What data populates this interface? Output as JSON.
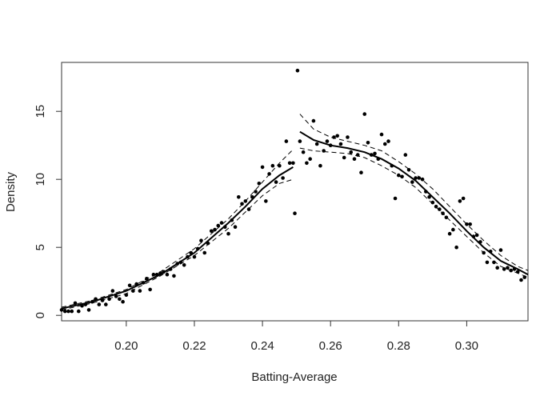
{
  "chart_data": {
    "type": "scatter",
    "title": "",
    "xlabel": "Batting-Average",
    "ylabel": "Density",
    "xlim": [
      0.181,
      0.318
    ],
    "ylim": [
      -0.4,
      18.6
    ],
    "xticks": [
      0.2,
      0.22,
      0.24,
      0.26,
      0.28,
      0.3
    ],
    "xtick_labels": [
      "0.20",
      "0.22",
      "0.24",
      "0.26",
      "0.28",
      "0.30"
    ],
    "yticks": [
      0,
      5,
      10,
      15
    ],
    "ytick_labels": [
      "0",
      "5",
      "10",
      "15"
    ],
    "grid": false,
    "legend": "none",
    "discontinuity_at": 0.25,
    "points": [
      [
        0.181,
        0.4
      ],
      [
        0.182,
        0.3
      ],
      [
        0.183,
        0.3
      ],
      [
        0.184,
        0.3
      ],
      [
        0.185,
        0.9
      ],
      [
        0.186,
        0.3
      ],
      [
        0.187,
        0.7
      ],
      [
        0.188,
        0.8
      ],
      [
        0.189,
        0.4
      ],
      [
        0.19,
        1.0
      ],
      [
        0.191,
        1.2
      ],
      [
        0.192,
        0.8
      ],
      [
        0.193,
        1.1
      ],
      [
        0.194,
        0.8
      ],
      [
        0.195,
        1.2
      ],
      [
        0.196,
        1.8
      ],
      [
        0.197,
        1.4
      ],
      [
        0.198,
        1.2
      ],
      [
        0.199,
        1.0
      ],
      [
        0.2,
        1.5
      ],
      [
        0.201,
        2.2
      ],
      [
        0.202,
        1.8
      ],
      [
        0.203,
        2.3
      ],
      [
        0.204,
        1.8
      ],
      [
        0.205,
        2.4
      ],
      [
        0.206,
        2.7
      ],
      [
        0.207,
        1.9
      ],
      [
        0.208,
        3.0
      ],
      [
        0.209,
        3.0
      ],
      [
        0.21,
        3.1
      ],
      [
        0.211,
        3.2
      ],
      [
        0.212,
        3.0
      ],
      [
        0.213,
        3.4
      ],
      [
        0.214,
        2.9
      ],
      [
        0.215,
        3.8
      ],
      [
        0.216,
        3.9
      ],
      [
        0.217,
        3.7
      ],
      [
        0.218,
        4.3
      ],
      [
        0.219,
        4.6
      ],
      [
        0.22,
        4.3
      ],
      [
        0.221,
        4.9
      ],
      [
        0.222,
        5.5
      ],
      [
        0.223,
        4.6
      ],
      [
        0.224,
        5.3
      ],
      [
        0.225,
        6.2
      ],
      [
        0.226,
        6.3
      ],
      [
        0.227,
        6.6
      ],
      [
        0.228,
        6.8
      ],
      [
        0.229,
        6.5
      ],
      [
        0.23,
        6.0
      ],
      [
        0.231,
        7.0
      ],
      [
        0.232,
        6.5
      ],
      [
        0.233,
        8.7
      ],
      [
        0.234,
        8.2
      ],
      [
        0.235,
        8.4
      ],
      [
        0.236,
        7.8
      ],
      [
        0.237,
        8.7
      ],
      [
        0.238,
        9.1
      ],
      [
        0.239,
        9.7
      ],
      [
        0.24,
        10.9
      ],
      [
        0.241,
        8.4
      ],
      [
        0.242,
        10.4
      ],
      [
        0.243,
        11.0
      ],
      [
        0.244,
        9.8
      ],
      [
        0.245,
        11.0
      ],
      [
        0.246,
        10.1
      ],
      [
        0.247,
        12.8
      ],
      [
        0.248,
        11.2
      ],
      [
        0.249,
        11.2
      ],
      [
        0.2495,
        7.5
      ],
      [
        0.2503,
        18.0
      ],
      [
        0.251,
        12.8
      ],
      [
        0.252,
        12.0
      ],
      [
        0.253,
        11.2
      ],
      [
        0.254,
        11.5
      ],
      [
        0.255,
        14.3
      ],
      [
        0.256,
        12.6
      ],
      [
        0.257,
        11.0
      ],
      [
        0.258,
        12.1
      ],
      [
        0.259,
        12.8
      ],
      [
        0.26,
        12.5
      ],
      [
        0.261,
        13.1
      ],
      [
        0.262,
        13.2
      ],
      [
        0.263,
        12.6
      ],
      [
        0.264,
        11.6
      ],
      [
        0.265,
        13.1
      ],
      [
        0.266,
        12.0
      ],
      [
        0.267,
        11.5
      ],
      [
        0.268,
        11.8
      ],
      [
        0.269,
        10.5
      ],
      [
        0.27,
        14.8
      ],
      [
        0.271,
        12.7
      ],
      [
        0.272,
        11.8
      ],
      [
        0.273,
        11.9
      ],
      [
        0.274,
        11.5
      ],
      [
        0.275,
        13.3
      ],
      [
        0.276,
        12.6
      ],
      [
        0.277,
        12.8
      ],
      [
        0.278,
        11.0
      ],
      [
        0.279,
        8.6
      ],
      [
        0.28,
        10.3
      ],
      [
        0.281,
        10.2
      ],
      [
        0.282,
        11.8
      ],
      [
        0.283,
        10.7
      ],
      [
        0.284,
        9.8
      ],
      [
        0.285,
        10.1
      ],
      [
        0.286,
        10.1
      ],
      [
        0.287,
        10.0
      ],
      [
        0.288,
        9.1
      ],
      [
        0.289,
        8.7
      ],
      [
        0.29,
        8.3
      ],
      [
        0.291,
        8.0
      ],
      [
        0.292,
        7.8
      ],
      [
        0.293,
        7.5
      ],
      [
        0.294,
        7.2
      ],
      [
        0.295,
        6.0
      ],
      [
        0.296,
        6.3
      ],
      [
        0.297,
        5.0
      ],
      [
        0.298,
        8.4
      ],
      [
        0.299,
        8.6
      ],
      [
        0.3,
        6.7
      ],
      [
        0.301,
        6.7
      ],
      [
        0.302,
        5.8
      ],
      [
        0.303,
        5.9
      ],
      [
        0.304,
        5.4
      ],
      [
        0.305,
        4.6
      ],
      [
        0.306,
        3.9
      ],
      [
        0.307,
        4.7
      ],
      [
        0.308,
        3.9
      ],
      [
        0.309,
        3.5
      ],
      [
        0.31,
        4.8
      ],
      [
        0.311,
        3.4
      ],
      [
        0.312,
        3.5
      ],
      [
        0.313,
        3.3
      ],
      [
        0.314,
        3.4
      ],
      [
        0.315,
        3.2
      ],
      [
        0.316,
        2.6
      ],
      [
        0.317,
        2.8
      ]
    ],
    "fit_left": [
      [
        0.181,
        0.5
      ],
      [
        0.19,
        1.0
      ],
      [
        0.2,
        1.8
      ],
      [
        0.21,
        3.0
      ],
      [
        0.22,
        4.6
      ],
      [
        0.23,
        6.8
      ],
      [
        0.235,
        8.0
      ],
      [
        0.24,
        9.3
      ],
      [
        0.245,
        10.3
      ],
      [
        0.249,
        10.9
      ]
    ],
    "ci_left_upper": [
      [
        0.181,
        0.6
      ],
      [
        0.19,
        1.1
      ],
      [
        0.2,
        1.9
      ],
      [
        0.21,
        3.2
      ],
      [
        0.22,
        4.9
      ],
      [
        0.23,
        7.1
      ],
      [
        0.235,
        8.4
      ],
      [
        0.24,
        9.8
      ],
      [
        0.245,
        11.2
      ],
      [
        0.249,
        12.2
      ]
    ],
    "ci_left_lower": [
      [
        0.181,
        0.4
      ],
      [
        0.19,
        0.9
      ],
      [
        0.2,
        1.6
      ],
      [
        0.21,
        2.9
      ],
      [
        0.22,
        4.4
      ],
      [
        0.23,
        6.4
      ],
      [
        0.235,
        7.6
      ],
      [
        0.24,
        8.8
      ],
      [
        0.245,
        9.7
      ],
      [
        0.249,
        10.0
      ]
    ],
    "fit_right": [
      [
        0.251,
        13.5
      ],
      [
        0.255,
        12.9
      ],
      [
        0.26,
        12.5
      ],
      [
        0.265,
        12.3
      ],
      [
        0.27,
        12.0
      ],
      [
        0.275,
        11.5
      ],
      [
        0.28,
        10.8
      ],
      [
        0.285,
        9.9
      ],
      [
        0.29,
        8.7
      ],
      [
        0.295,
        7.5
      ],
      [
        0.3,
        6.2
      ],
      [
        0.305,
        5.0
      ],
      [
        0.31,
        4.0
      ],
      [
        0.315,
        3.4
      ],
      [
        0.318,
        3.0
      ]
    ],
    "ci_right_upper": [
      [
        0.251,
        14.8
      ],
      [
        0.255,
        13.7
      ],
      [
        0.26,
        13.1
      ],
      [
        0.265,
        12.8
      ],
      [
        0.27,
        12.5
      ],
      [
        0.275,
        12.1
      ],
      [
        0.28,
        11.3
      ],
      [
        0.285,
        10.4
      ],
      [
        0.29,
        9.3
      ],
      [
        0.295,
        8.0
      ],
      [
        0.3,
        6.7
      ],
      [
        0.305,
        5.5
      ],
      [
        0.31,
        4.4
      ],
      [
        0.315,
        3.6
      ],
      [
        0.318,
        3.3
      ]
    ],
    "ci_right_lower": [
      [
        0.251,
        12.3
      ],
      [
        0.255,
        12.1
      ],
      [
        0.26,
        12.0
      ],
      [
        0.265,
        11.9
      ],
      [
        0.27,
        11.6
      ],
      [
        0.275,
        11.0
      ],
      [
        0.28,
        10.3
      ],
      [
        0.285,
        9.4
      ],
      [
        0.29,
        8.2
      ],
      [
        0.295,
        7.0
      ],
      [
        0.3,
        5.8
      ],
      [
        0.305,
        4.6
      ],
      [
        0.31,
        3.6
      ],
      [
        0.315,
        3.1
      ],
      [
        0.318,
        2.8
      ]
    ]
  }
}
